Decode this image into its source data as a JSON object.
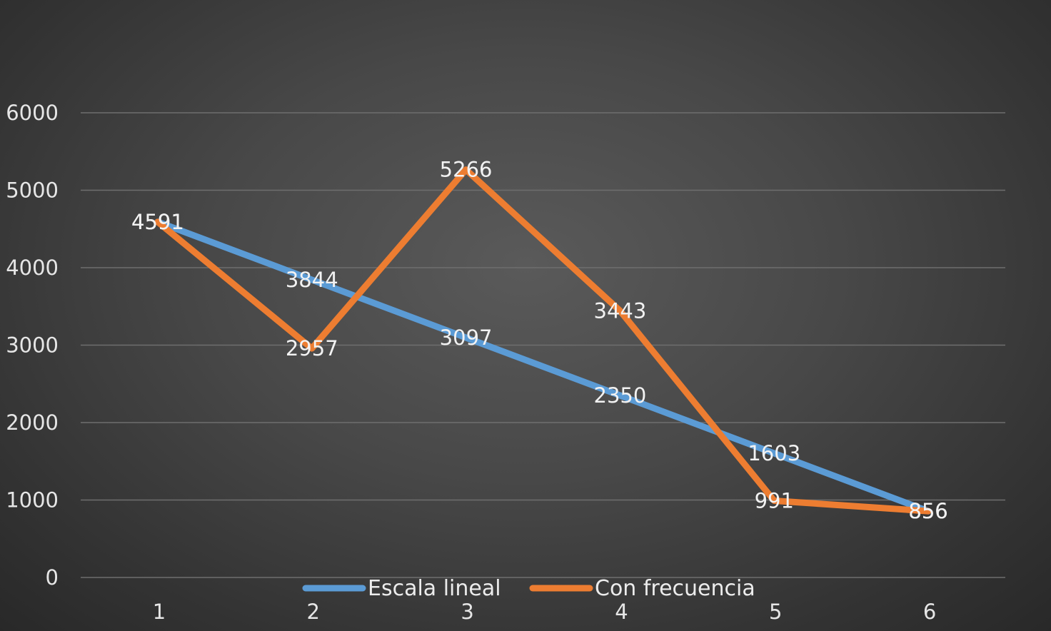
{
  "chart_data": {
    "type": "line",
    "title": "",
    "xlabel": "",
    "ylabel": "",
    "categories": [
      "1",
      "2",
      "3",
      "4",
      "5",
      "6"
    ],
    "ylim": [
      0,
      6000
    ],
    "yticks": [
      "0",
      "1000",
      "2000",
      "3000",
      "4000",
      "5000",
      "6000"
    ],
    "grid": true,
    "legend_position": "bottom",
    "data_labels": true,
    "series": [
      {
        "name": "Escala lineal",
        "color": "#5b9bd5",
        "values": [
          4591,
          3844,
          3097,
          2350,
          1603,
          856
        ]
      },
      {
        "name": "Con frecuencia",
        "color": "#ed7d31",
        "values": [
          4591,
          2957,
          5266,
          3443,
          991,
          856
        ]
      }
    ]
  }
}
